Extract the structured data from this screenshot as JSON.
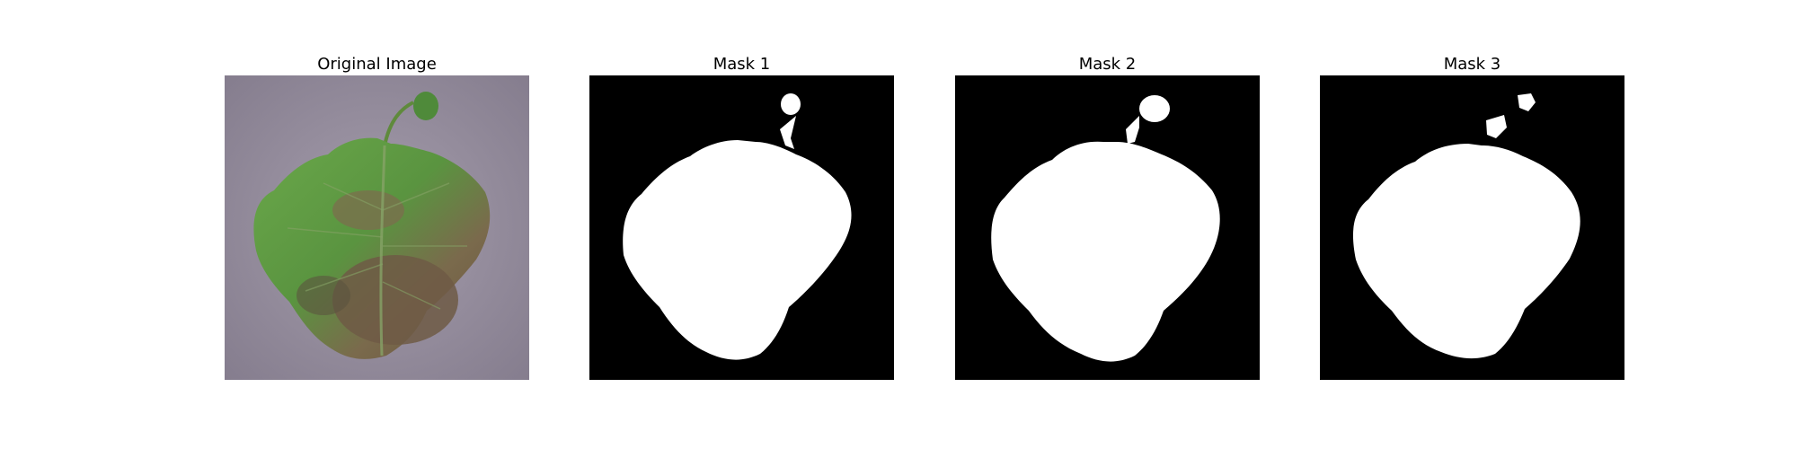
{
  "panels": [
    {
      "title": "Original Image",
      "kind": "photo"
    },
    {
      "title": "Mask 1",
      "kind": "mask"
    },
    {
      "title": "Mask 2",
      "kind": "mask"
    },
    {
      "title": "Mask 3",
      "kind": "mask"
    }
  ],
  "colors": {
    "background_surface": "#8f8796",
    "leaf_green": "#5e9a3e",
    "leaf_dark": "#3f6d2a",
    "blight_brown": "#6e5a45",
    "mask_background": "#000000",
    "mask_foreground": "#ffffff"
  }
}
